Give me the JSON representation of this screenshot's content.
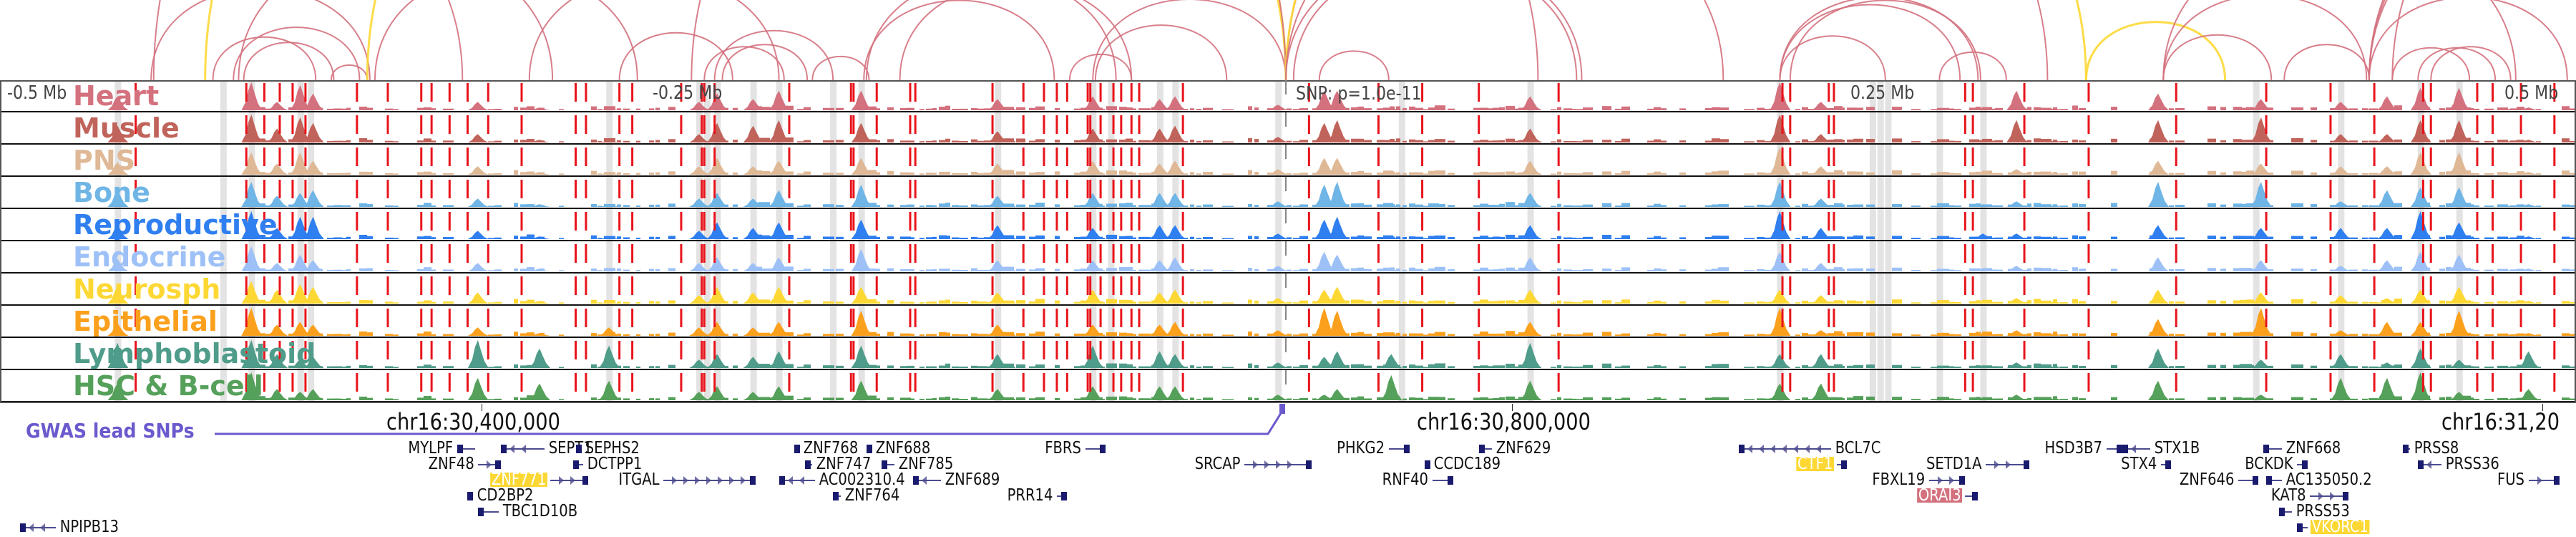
{
  "view": {
    "region_offset_mb": [
      -0.5,
      0.5
    ],
    "lead_snp_label": "SNP: p=1.0e-11",
    "axis_ticks": [
      {
        "offset_mb": -0.5,
        "label": "-0.5 Mb"
      },
      {
        "offset_mb": -0.25,
        "label": "-0.25 Mb"
      },
      {
        "offset_mb": 0.25,
        "label": "0.25 Mb"
      },
      {
        "offset_mb": 0.5,
        "label": "0.5 Mb"
      }
    ],
    "chrom_ticks": [
      {
        "offset_mb": -0.3126,
        "label": "chr16:30,400,000"
      },
      {
        "offset_mb": 0.0878,
        "label": "chr16:30,800,000"
      },
      {
        "offset_mb": 0.4884,
        "label": "chr16:31,20"
      }
    ],
    "gwas_label": "GWAS lead SNPs"
  },
  "colors": {
    "loop_default": "#d4717e",
    "loop_snp": "#fdd835",
    "snp_marker": "#6a5acd",
    "dashed_line": "#e8141b",
    "highlight_band": "#e3e3e3",
    "gene_line": "#4b4b8f",
    "gene_exon": "#1a1a6e"
  },
  "tracks": [
    {
      "name": "Heart",
      "color": "#d4717e"
    },
    {
      "name": "Muscle",
      "color": "#c0635b"
    },
    {
      "name": "PNS",
      "color": "#dfb896"
    },
    {
      "name": "Bone",
      "color": "#6fb5e6"
    },
    {
      "name": "Reproductive",
      "color": "#2f7ff0"
    },
    {
      "name": "Endocrine",
      "color": "#9dc1f7"
    },
    {
      "name": "Neurosph",
      "color": "#fdd835"
    },
    {
      "name": "Epithelial",
      "color": "#fba01c"
    },
    {
      "name": "Lymphoblastoid",
      "color": "#4f9c8a"
    },
    {
      "name": "HSC & B-cell",
      "color": "#55a05a"
    }
  ],
  "dashed_lines_mb": [
    -0.447,
    -0.404,
    -0.397,
    -0.391,
    -0.386,
    -0.381,
    -0.361,
    -0.349,
    -0.336,
    -0.332,
    -0.325,
    -0.318,
    -0.31,
    -0.297,
    -0.276,
    -0.272,
    -0.259,
    -0.254,
    -0.235,
    -0.227,
    -0.226,
    -0.222,
    -0.193,
    -0.169,
    -0.168,
    -0.159,
    -0.146,
    -0.144,
    -0.114,
    -0.102,
    -0.094,
    -0.089,
    -0.085,
    -0.077,
    -0.076,
    -0.072,
    -0.067,
    -0.064,
    -0.06,
    -0.057,
    -0.04,
    0.009,
    0.036,
    0.053,
    0.075,
    0.106,
    0.193,
    0.196,
    0.211,
    0.213,
    0.264,
    0.267,
    0.287,
    0.312,
    0.346,
    0.381,
    0.406,
    0.423,
    0.442,
    0.445,
    0.463,
    0.469,
    0.48,
    0.493
  ],
  "highlight_bands_mb": [
    -0.454,
    -0.413,
    -0.402,
    -0.383,
    -0.379,
    -0.263,
    -0.228,
    -0.225,
    -0.221,
    -0.207,
    -0.197,
    -0.176,
    -0.165,
    -0.112,
    -0.075,
    -0.068,
    -0.049,
    -0.043,
    -0.003,
    0.045,
    0.095,
    0.192,
    0.228,
    0.231,
    0.234,
    0.254,
    0.271,
    0.377,
    0.41,
    0.441,
    0.456
  ],
  "peaks": [
    {
      "mb": -0.454,
      "h": [
        0.5,
        0.6,
        0.45,
        0.6,
        0.5,
        0.45,
        0.6,
        0.45,
        0.9,
        0.6
      ]
    },
    {
      "mb": -0.402,
      "h": [
        1.0,
        1.0,
        0.8,
        0.9,
        1.0,
        0.9,
        0.8,
        1.0,
        1.0,
        1.0
      ]
    },
    {
      "mb": -0.392,
      "h": [
        0.3,
        0.5,
        0.4,
        0.4,
        0.4,
        0.3,
        0.5,
        0.4,
        0.5,
        0.4
      ]
    },
    {
      "mb": -0.383,
      "h": [
        0.9,
        0.9,
        0.8,
        0.5,
        0.8,
        0.6,
        0.7,
        0.5,
        0.3,
        0.3
      ]
    },
    {
      "mb": -0.378,
      "h": [
        0.6,
        0.7,
        0.5,
        0.6,
        0.8,
        0.4,
        0.6,
        0.4,
        0.4,
        0.4
      ]
    },
    {
      "mb": -0.314,
      "h": [
        0.3,
        0.3,
        0.3,
        0.3,
        0.3,
        0.3,
        0.4,
        0.3,
        1.0,
        0.8
      ]
    },
    {
      "mb": -0.29,
      "h": [
        0.1,
        0.1,
        0.1,
        0.1,
        0.1,
        0.1,
        0.1,
        0.1,
        0.7,
        0.6
      ]
    },
    {
      "mb": -0.263,
      "h": [
        0.1,
        0.1,
        0.1,
        0.1,
        0.1,
        0.1,
        0.1,
        0.3,
        0.8,
        0.7
      ]
    },
    {
      "mb": -0.228,
      "h": [
        0.3,
        0.3,
        0.3,
        0.3,
        0.3,
        0.3,
        0.3,
        0.3,
        0.3,
        0.3
      ]
    },
    {
      "mb": -0.221,
      "h": [
        0.6,
        0.7,
        0.6,
        0.5,
        0.6,
        0.5,
        0.6,
        0.5,
        0.5,
        0.5
      ]
    },
    {
      "mb": -0.207,
      "h": [
        0.4,
        0.6,
        0.3,
        0.3,
        0.4,
        0.3,
        0.4,
        0.3,
        0.4,
        0.3
      ]
    },
    {
      "mb": -0.197,
      "h": [
        0.7,
        0.8,
        0.5,
        0.6,
        0.6,
        0.5,
        0.6,
        0.5,
        0.6,
        0.5
      ]
    },
    {
      "mb": -0.165,
      "h": [
        0.7,
        0.7,
        0.6,
        0.8,
        0.7,
        0.8,
        0.6,
        0.9,
        0.8,
        0.7
      ]
    },
    {
      "mb": -0.112,
      "h": [
        0.4,
        0.4,
        0.4,
        0.4,
        0.5,
        0.4,
        0.4,
        0.4,
        0.5,
        0.4
      ]
    },
    {
      "mb": -0.075,
      "h": [
        0.5,
        0.5,
        0.5,
        0.5,
        0.4,
        0.4,
        0.5,
        0.4,
        0.8,
        0.5
      ]
    },
    {
      "mb": -0.049,
      "h": [
        0.4,
        0.5,
        0.4,
        0.5,
        0.5,
        0.4,
        0.4,
        0.4,
        0.6,
        0.5
      ]
    },
    {
      "mb": -0.043,
      "h": [
        0.5,
        0.6,
        0.5,
        0.5,
        0.5,
        0.5,
        0.5,
        0.5,
        0.5,
        0.5
      ]
    },
    {
      "mb": -0.003,
      "h": [
        0.2,
        0.2,
        0.2,
        0.2,
        0.2,
        0.2,
        0.2,
        0.2,
        0.2,
        0.2
      ]
    },
    {
      "mb": 0.015,
      "h": [
        0.7,
        0.7,
        0.6,
        0.8,
        0.7,
        0.7,
        0.5,
        1.0,
        0.4,
        0.2
      ]
    },
    {
      "mb": 0.02,
      "h": [
        0.7,
        0.8,
        0.6,
        0.9,
        0.8,
        0.6,
        0.6,
        0.9,
        0.6,
        0.4
      ]
    },
    {
      "mb": 0.041,
      "h": [
        0.1,
        0.1,
        0.1,
        0.1,
        0.1,
        0.1,
        0.1,
        0.1,
        0.5,
        0.9
      ]
    },
    {
      "mb": 0.095,
      "h": [
        0.5,
        0.5,
        0.5,
        0.5,
        0.5,
        0.5,
        0.5,
        0.5,
        0.9,
        0.7
      ]
    },
    {
      "mb": 0.192,
      "h": [
        1.0,
        1.0,
        1.0,
        0.9,
        1.0,
        0.7,
        0.5,
        1.0,
        0.5,
        0.6
      ]
    },
    {
      "mb": 0.208,
      "h": [
        0.3,
        0.3,
        0.3,
        0.3,
        0.4,
        0.3,
        0.3,
        0.2,
        0.5,
        0.6
      ]
    },
    {
      "mb": 0.271,
      "h": [
        0.1,
        0.1,
        0.1,
        0.1,
        0.2,
        0.1,
        0.1,
        0.1,
        0.1,
        0.1
      ]
    },
    {
      "mb": 0.284,
      "h": [
        0.7,
        0.8,
        0.2,
        0.2,
        0.2,
        0.2,
        0.2,
        0.2,
        0.2,
        0.2
      ]
    },
    {
      "mb": 0.339,
      "h": [
        0.6,
        0.8,
        0.5,
        0.9,
        0.5,
        0.5,
        0.5,
        0.6,
        0.7,
        0.7
      ]
    },
    {
      "mb": 0.379,
      "h": [
        0.4,
        0.9,
        0.4,
        0.9,
        0.4,
        0.4,
        0.4,
        1.0,
        0.3,
        0.2
      ]
    },
    {
      "mb": 0.41,
      "h": [
        0.3,
        0.3,
        0.3,
        0.2,
        0.4,
        0.2,
        0.3,
        0.2,
        0.5,
        0.8
      ]
    },
    {
      "mb": 0.428,
      "h": [
        0.5,
        0.3,
        0.3,
        0.6,
        0.4,
        0.4,
        0.2,
        0.5,
        0.2,
        0.8
      ]
    },
    {
      "mb": 0.441,
      "h": [
        0.8,
        0.8,
        0.8,
        0.7,
        1.0,
        0.7,
        0.5,
        0.5,
        0.7,
        1.0
      ]
    },
    {
      "mb": 0.456,
      "h": [
        0.8,
        0.8,
        0.8,
        0.7,
        0.6,
        0.6,
        0.6,
        0.9,
        0.3,
        0.3
      ]
    },
    {
      "mb": 0.483,
      "h": [
        0.1,
        0.1,
        0.1,
        0.1,
        0.1,
        0.1,
        0.1,
        0.1,
        0.6,
        0.4
      ]
    }
  ],
  "loops": [
    {
      "a": -0.441,
      "b": -0.356,
      "snp": false
    },
    {
      "a": -0.417,
      "b": -0.377,
      "snp": false
    },
    {
      "a": -0.409,
      "b": -0.36,
      "snp": false
    },
    {
      "a": -0.407,
      "b": -0.285,
      "snp": false
    },
    {
      "a": -0.405,
      "b": -0.37,
      "snp": false
    },
    {
      "a": -0.371,
      "b": -0.357,
      "snp": false
    },
    {
      "a": -0.357,
      "b": 0.0,
      "snp": true
    },
    {
      "a": -0.354,
      "b": -0.252,
      "snp": false
    },
    {
      "a": -0.259,
      "b": -0.215,
      "snp": false
    },
    {
      "a": -0.294,
      "b": -0.197,
      "snp": false
    },
    {
      "a": -0.231,
      "b": 0.098,
      "snp": false
    },
    {
      "a": -0.226,
      "b": -0.195,
      "snp": false
    },
    {
      "a": -0.222,
      "b": -0.176,
      "snp": false
    },
    {
      "a": -0.219,
      "b": -0.186,
      "snp": false
    },
    {
      "a": -0.184,
      "b": -0.162,
      "snp": false
    },
    {
      "a": -0.164,
      "b": -0.09,
      "snp": false
    },
    {
      "a": -0.163,
      "b": -0.066,
      "snp": false
    },
    {
      "a": -0.15,
      "b": -0.06,
      "snp": false
    },
    {
      "a": -0.084,
      "b": -0.06,
      "snp": false
    },
    {
      "a": -0.075,
      "b": 0.0,
      "snp": false
    },
    {
      "a": -0.074,
      "b": -0.023,
      "snp": false
    },
    {
      "a": -0.42,
      "b": 0.0,
      "snp": true
    },
    {
      "a": -0.44,
      "b": 0.0,
      "snp": false
    },
    {
      "a": 0.0,
      "b": 0.296,
      "snp": false
    },
    {
      "a": 0.0,
      "b": 0.311,
      "snp": true
    },
    {
      "a": 0.0,
      "b": 0.17,
      "snp": false
    },
    {
      "a": 0.0,
      "b": 0.115,
      "snp": false
    },
    {
      "a": 0.003,
      "b": 0.113,
      "snp": false
    },
    {
      "a": 0.013,
      "b": 0.04,
      "snp": false
    },
    {
      "a": 0.192,
      "b": 0.233,
      "snp": false
    },
    {
      "a": 0.192,
      "b": 0.262,
      "snp": false
    },
    {
      "a": 0.192,
      "b": 0.269,
      "snp": false
    },
    {
      "a": 0.196,
      "b": 0.27,
      "snp": false
    },
    {
      "a": 0.254,
      "b": 0.28,
      "snp": false
    },
    {
      "a": 0.311,
      "b": 0.365,
      "snp": true
    },
    {
      "a": 0.341,
      "b": 0.383,
      "snp": false
    },
    {
      "a": 0.341,
      "b": 0.42,
      "snp": false
    },
    {
      "a": 0.341,
      "b": 0.478,
      "snp": false
    },
    {
      "a": 0.388,
      "b": 0.421,
      "snp": false
    },
    {
      "a": 0.421,
      "b": 0.498,
      "snp": false
    },
    {
      "a": 0.421,
      "b": 0.64,
      "snp": false
    },
    {
      "a": 0.421,
      "b": 0.62,
      "snp": false
    },
    {
      "a": 0.421,
      "b": 0.6,
      "snp": false
    },
    {
      "a": 0.43,
      "b": 0.46,
      "snp": false
    },
    {
      "a": 0.43,
      "b": 0.7,
      "snp": false
    },
    {
      "a": 0.445,
      "b": 0.476,
      "snp": false
    },
    {
      "a": 0.44,
      "b": 0.47,
      "snp": false
    },
    {
      "a": -0.54,
      "b": -0.32,
      "snp": false
    }
  ],
  "genes": [
    {
      "name": "MYLPF",
      "row": 0,
      "start": -0.322,
      "end": -0.315,
      "strand": "-",
      "label": "left"
    },
    {
      "name": "SEPT1",
      "row": 0,
      "start": -0.305,
      "end": -0.288,
      "strand": "-",
      "label": "right"
    },
    {
      "name": "SEPHS2",
      "row": 0,
      "start": -0.276,
      "end": -0.274,
      "strand": "-",
      "label": "right"
    },
    {
      "name": "ZNF768",
      "row": 0,
      "start": -0.191,
      "end": -0.189,
      "strand": "-",
      "label": "right"
    },
    {
      "name": "ZNF688",
      "row": 0,
      "start": -0.163,
      "end": -0.161,
      "strand": "-",
      "label": "right"
    },
    {
      "name": "FBRS",
      "row": 0,
      "start": -0.078,
      "end": -0.07,
      "strand": "+",
      "label": "left"
    },
    {
      "name": "PHKG2",
      "row": 0,
      "start": 0.04,
      "end": 0.048,
      "strand": "+",
      "label": "left"
    },
    {
      "name": "ZNF629",
      "row": 0,
      "start": 0.075,
      "end": 0.08,
      "strand": "-",
      "label": "right"
    },
    {
      "name": "BCL7C",
      "row": 0,
      "start": 0.176,
      "end": 0.212,
      "strand": "-",
      "label": "right"
    },
    {
      "name": "HSD3B7",
      "row": 0,
      "start": 0.319,
      "end": 0.325,
      "strand": "+",
      "label": "left"
    },
    {
      "name": "STX1B",
      "row": 0,
      "start": 0.325,
      "end": 0.336,
      "strand": "-",
      "label": "right"
    },
    {
      "name": "ZNF668",
      "row": 0,
      "start": 0.38,
      "end": 0.387,
      "strand": "-",
      "label": "right"
    },
    {
      "name": "PRSS8",
      "row": 0,
      "start": 0.434,
      "end": 0.437,
      "strand": "-",
      "label": "right"
    },
    {
      "name": "ZNF48",
      "row": 1,
      "start": -0.314,
      "end": -0.305,
      "strand": "+",
      "label": "left"
    },
    {
      "name": "DCTPP1",
      "row": 1,
      "start": -0.277,
      "end": -0.273,
      "strand": "-",
      "label": "right"
    },
    {
      "name": "ZNF747",
      "row": 1,
      "start": -0.187,
      "end": -0.184,
      "strand": "-",
      "label": "right"
    },
    {
      "name": "ZNF785",
      "row": 1,
      "start": -0.157,
      "end": -0.152,
      "strand": "-",
      "label": "right"
    },
    {
      "name": "SRCAP",
      "row": 1,
      "start": -0.016,
      "end": 0.01,
      "strand": "+",
      "label": "left"
    },
    {
      "name": "CCDC189",
      "row": 1,
      "start": 0.054,
      "end": 0.056,
      "strand": "-",
      "label": "right"
    },
    {
      "name": "CTF1",
      "row": 1,
      "start": 0.214,
      "end": 0.218,
      "strand": "+",
      "label": "left",
      "highlight": "yellow"
    },
    {
      "name": "SETD1A",
      "row": 1,
      "start": 0.272,
      "end": 0.289,
      "strand": "+",
      "label": "left"
    },
    {
      "name": "STX4",
      "row": 1,
      "start": 0.34,
      "end": 0.344,
      "strand": "+",
      "label": "left"
    },
    {
      "name": "BCKDK",
      "row": 1,
      "start": 0.393,
      "end": 0.397,
      "strand": "+",
      "label": "left"
    },
    {
      "name": "PRSS36",
      "row": 1,
      "start": 0.44,
      "end": 0.449,
      "strand": "-",
      "label": "right"
    },
    {
      "name": "ZNF771",
      "row": 2,
      "start": -0.286,
      "end": -0.271,
      "strand": "+",
      "label": "left",
      "highlight": "yellow"
    },
    {
      "name": "ITGAL",
      "row": 2,
      "start": -0.242,
      "end": -0.206,
      "strand": "+",
      "label": "left"
    },
    {
      "name": "AC002310.4",
      "row": 2,
      "start": -0.197,
      "end": -0.183,
      "strand": "-",
      "label": "right"
    },
    {
      "name": "ZNF689",
      "row": 2,
      "start": -0.145,
      "end": -0.134,
      "strand": "-",
      "label": "right"
    },
    {
      "name": "RNF40",
      "row": 2,
      "start": 0.057,
      "end": 0.065,
      "strand": "+",
      "label": "left"
    },
    {
      "name": "FBXL19",
      "row": 2,
      "start": 0.25,
      "end": 0.264,
      "strand": "+",
      "label": "left"
    },
    {
      "name": "ZNF646",
      "row": 2,
      "start": 0.37,
      "end": 0.378,
      "strand": "+",
      "label": "left"
    },
    {
      "name": "AC135050.2",
      "row": 2,
      "start": 0.381,
      "end": 0.387,
      "strand": "-",
      "label": "right"
    },
    {
      "name": "FUS",
      "row": 2,
      "start": 0.483,
      "end": 0.495,
      "strand": "+",
      "label": "left"
    },
    {
      "name": "CD2BP2",
      "row": 3,
      "start": -0.318,
      "end": -0.316,
      "strand": "-",
      "label": "right"
    },
    {
      "name": "ZNF764",
      "row": 3,
      "start": -0.176,
      "end": -0.173,
      "strand": "-",
      "label": "right"
    },
    {
      "name": "PRR14",
      "row": 3,
      "start": -0.089,
      "end": -0.085,
      "strand": "+",
      "label": "left"
    },
    {
      "name": "ORAI3",
      "row": 3,
      "start": 0.264,
      "end": 0.269,
      "strand": "+",
      "label": "left",
      "highlight": "pink"
    },
    {
      "name": "KAT8",
      "row": 3,
      "start": 0.398,
      "end": 0.413,
      "strand": "+",
      "label": "left"
    },
    {
      "name": "TBC1D10B",
      "row": 4,
      "start": -0.314,
      "end": -0.306,
      "strand": "-",
      "label": "right"
    },
    {
      "name": "PRSS53",
      "row": 4,
      "start": 0.386,
      "end": 0.391,
      "strand": "-",
      "label": "right"
    },
    {
      "name": "NPIPB13",
      "row": 5,
      "start": -0.492,
      "end": -0.478,
      "strand": "-",
      "label": "right"
    },
    {
      "name": "VKORC1",
      "row": 5,
      "start": 0.393,
      "end": 0.397,
      "strand": "-",
      "label": "right",
      "highlight": "yellow"
    }
  ]
}
